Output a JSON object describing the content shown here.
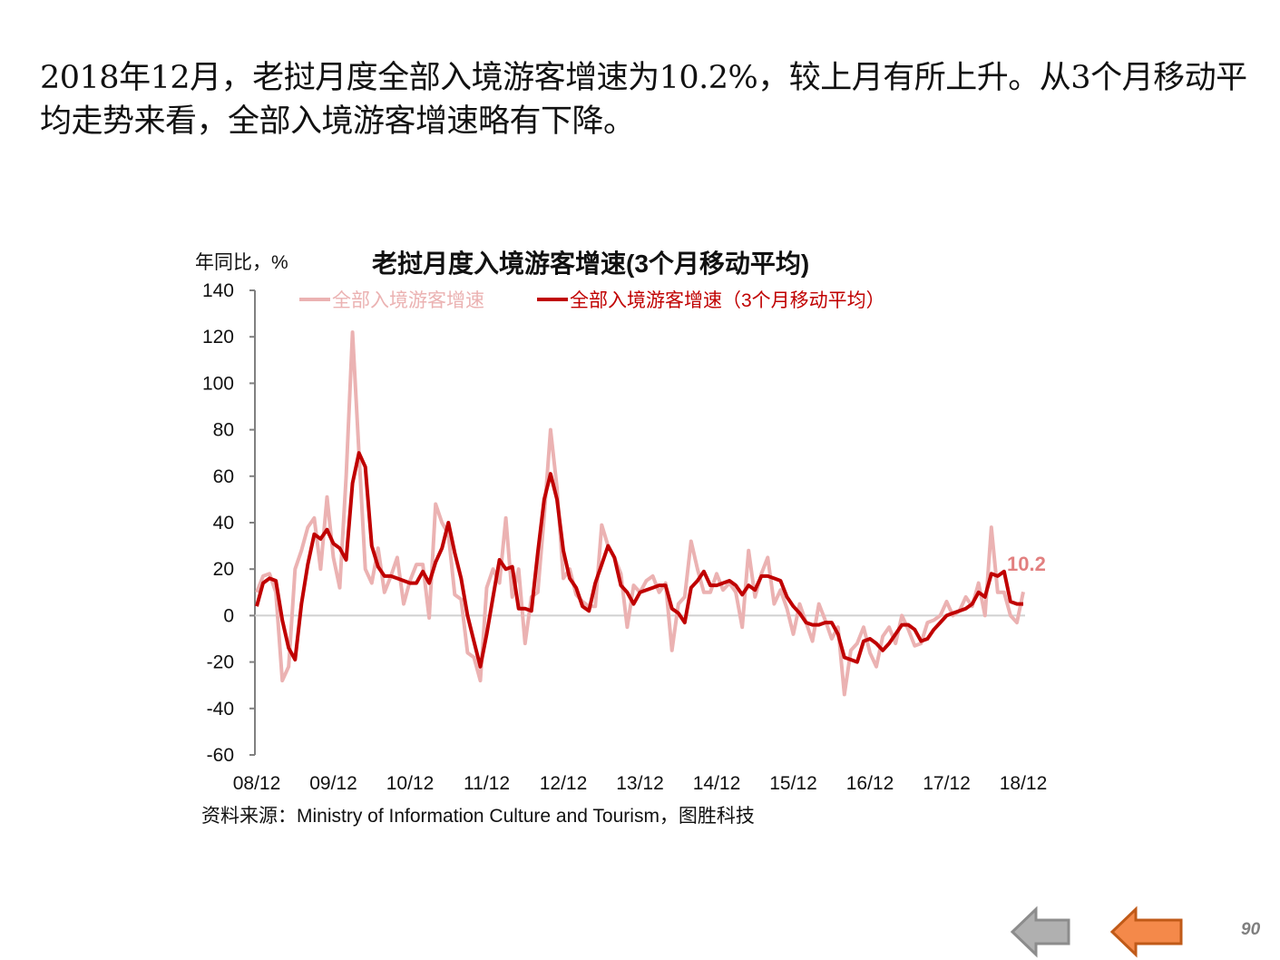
{
  "intro_text": "2018年12月，老挝月度全部入境游客增速为10.2%，较上月有所上升。从3个月移动平均走势来看，全部入境游客增速略有下降。",
  "page_number": "90",
  "nav": {
    "back_icon": "grey-left-arrow-icon",
    "prev_icon": "orange-left-arrow-icon"
  },
  "colors": {
    "raw": "#ebb2b2",
    "ma": "#c00000",
    "label": "#e28080",
    "nav_grey": "#a6a6a6",
    "nav_orange": "#f08030"
  },
  "chart_data": {
    "type": "line",
    "title": "老挝月度入境游客增速(3个月移动平均)",
    "ylabel": "年同比，%",
    "xlabel": "",
    "ylim": [
      -60,
      140
    ],
    "yticks": [
      "140",
      "120",
      "100",
      "80",
      "60",
      "40",
      "20",
      "0",
      "-20",
      "-40",
      "-60"
    ],
    "ytick_values": [
      140,
      120,
      100,
      80,
      60,
      40,
      20,
      0,
      -20,
      -40,
      -60
    ],
    "xticks": [
      "08/12",
      "09/12",
      "10/12",
      "11/12",
      "12/12",
      "13/12",
      "14/12",
      "15/12",
      "16/12",
      "17/12",
      "18/12"
    ],
    "x_range_months": [
      0,
      120
    ],
    "legend": [
      "全部入境游客增速",
      "全部入境游客增速（3个月移动平均）"
    ],
    "legend_position": "top",
    "annotation": "10.2",
    "source": "资料来源：Ministry of Information Culture and Tourism，图胜科技",
    "series": [
      {
        "name": "全部入境游客增速",
        "values": [
          10,
          17,
          18,
          10,
          -28,
          -22,
          20,
          28,
          38,
          42,
          20,
          51,
          25,
          12,
          60,
          122,
          70,
          20,
          14,
          29,
          10,
          17,
          25,
          5,
          15,
          22,
          22,
          -1,
          48,
          40,
          35,
          9,
          7,
          -16,
          -18,
          -28,
          12,
          20,
          14,
          42,
          8,
          20,
          -12,
          8,
          10,
          43,
          80,
          55,
          16,
          20,
          9,
          6,
          4,
          4,
          39,
          30,
          25,
          18,
          -5,
          13,
          10,
          15,
          17,
          10,
          14,
          -15,
          5,
          8,
          32,
          20,
          10,
          10,
          18,
          11,
          14,
          10,
          -5,
          28,
          8,
          18,
          25,
          5,
          11,
          3,
          -8,
          5,
          -3,
          -11,
          5,
          -2,
          -10,
          -5,
          -34,
          -15,
          -12,
          -5,
          -16,
          -22,
          -9,
          -5,
          -12,
          0,
          -6,
          -13,
          -12,
          -3,
          -2,
          0,
          6,
          0,
          2,
          8,
          4,
          14,
          0,
          38,
          10,
          10,
          0,
          -3,
          10.2
        ]
      },
      {
        "name": "全部入境游客增速（3个月移动平均）",
        "values": [
          4,
          14,
          16,
          15,
          -2,
          -14,
          -19,
          5,
          22,
          35,
          33,
          37,
          31,
          29,
          24,
          57,
          70,
          64,
          30,
          21,
          17,
          17,
          16,
          15,
          14,
          14,
          19,
          14,
          23,
          29,
          40,
          27,
          16,
          0,
          -11,
          -22,
          -8,
          8,
          24,
          20,
          21,
          3,
          3,
          2,
          27,
          50,
          61,
          50,
          28,
          16,
          12,
          4,
          2,
          14,
          22,
          30,
          25,
          13,
          10,
          5,
          10,
          11,
          12,
          13,
          13,
          3,
          1,
          -3,
          12,
          15,
          19,
          13,
          13,
          14,
          15,
          13,
          9,
          13,
          11,
          17,
          17,
          16,
          15,
          8,
          4,
          1,
          -3,
          -4,
          -4,
          -3,
          -3,
          -8,
          -18,
          -19,
          -20,
          -11,
          -10,
          -12,
          -15,
          -12,
          -8,
          -4,
          -4,
          -6,
          -11,
          -10,
          -6,
          -3,
          0,
          1,
          2,
          3,
          5,
          10,
          8,
          18,
          17,
          19,
          6,
          5,
          5
        ]
      }
    ]
  }
}
